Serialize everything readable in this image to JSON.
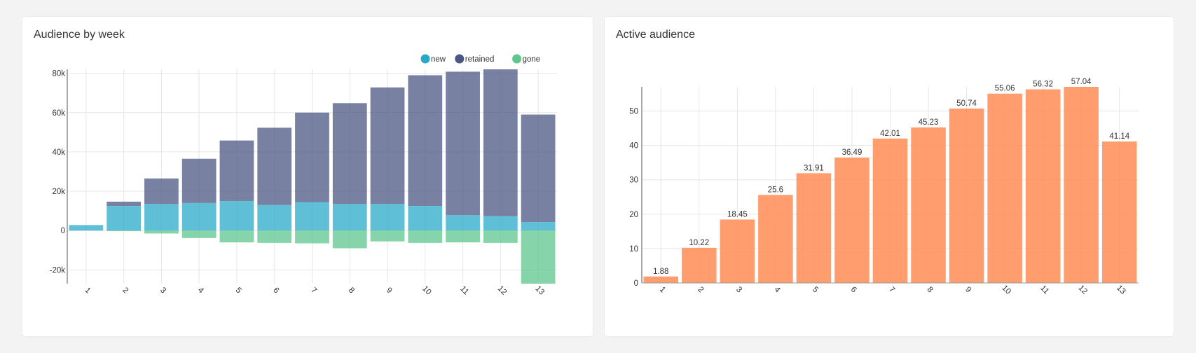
{
  "cards": {
    "left": {
      "title": "Audience by week"
    },
    "right": {
      "title": "Active audience"
    }
  },
  "chart_data": [
    {
      "type": "bar",
      "stacked": true,
      "title": "Audience by week",
      "categories": [
        "1",
        "2",
        "3",
        "4",
        "5",
        "6",
        "7",
        "8",
        "9",
        "10",
        "11",
        "12",
        "13"
      ],
      "series": [
        {
          "name": "new",
          "color": "#29a9c9",
          "values": [
            2800,
            12500,
            13500,
            14000,
            15000,
            13000,
            14500,
            13500,
            13500,
            12500,
            7800,
            7300,
            4300
          ]
        },
        {
          "name": "retained",
          "color": "#4b5783",
          "values": [
            0,
            2200,
            13000,
            22500,
            30800,
            39300,
            45500,
            51300,
            59300,
            66500,
            73000,
            74700,
            54700
          ]
        },
        {
          "name": "gone",
          "color": "#5ec58e",
          "values": [
            0,
            -300,
            -1500,
            -3800,
            -6000,
            -6300,
            -6500,
            -9000,
            -5500,
            -6300,
            -6000,
            -6300,
            -27000
          ]
        }
      ],
      "ylim": [
        -27000,
        82000
      ],
      "yticks": [
        "80k",
        "60k",
        "40k",
        "20k",
        "0",
        "-20k"
      ],
      "ytick_values": [
        80000,
        60000,
        40000,
        20000,
        0,
        -20000
      ],
      "legend": "top-right",
      "grid": true
    },
    {
      "type": "bar",
      "title": "Active audience",
      "categories": [
        "1",
        "2",
        "3",
        "4",
        "5",
        "6",
        "7",
        "8",
        "9",
        "10",
        "11",
        "12",
        "13"
      ],
      "values": [
        1.88,
        10.22,
        18.45,
        25.6,
        31.91,
        36.49,
        42.01,
        45.23,
        50.74,
        55.06,
        56.32,
        57.04,
        41.14
      ],
      "labels": [
        "1.88",
        "10.22",
        "18.45",
        "25.6",
        "31.91",
        "36.49",
        "42.01",
        "45.23",
        "50.74",
        "55.06",
        "56.32",
        "57.04",
        "41.14"
      ],
      "color": "#ff8c55",
      "ylim": [
        0,
        57.04
      ],
      "yticks": [
        "50",
        "40",
        "30",
        "20",
        "10",
        "0"
      ],
      "ytick_values": [
        50,
        40,
        30,
        20,
        10,
        0
      ],
      "grid": true
    }
  ]
}
